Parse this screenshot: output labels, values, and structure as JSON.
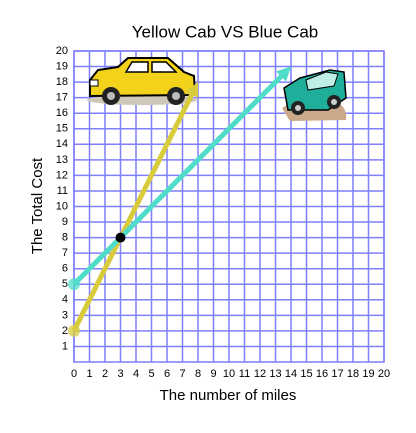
{
  "chart_data": {
    "type": "line",
    "title": "Yellow Cab VS Blue Cab",
    "x_label": "The number of miles",
    "y_label": "The Total Cost",
    "xlim": [
      0,
      20
    ],
    "xticks": [
      0,
      1,
      2,
      3,
      4,
      5,
      6,
      7,
      8,
      9,
      10,
      11,
      12,
      13,
      14,
      15,
      16,
      17,
      18,
      19,
      20
    ],
    "ylim": [
      0,
      20
    ],
    "yticks": [
      1,
      2,
      3,
      4,
      5,
      6,
      7,
      8,
      9,
      10,
      11,
      12,
      13,
      14,
      15,
      16,
      17,
      18,
      19,
      20
    ],
    "grid": true,
    "grid_color": "#7f7fff",
    "series": [
      {
        "name": "Yellow Cab",
        "color": "#d8cc3c",
        "x": [
          0,
          3,
          8
        ],
        "values": [
          2,
          8,
          18
        ]
      },
      {
        "name": "Blue Cab",
        "color": "#4fdcc8",
        "x": [
          0,
          3,
          14
        ],
        "values": [
          5,
          8,
          19
        ]
      }
    ]
  }
}
